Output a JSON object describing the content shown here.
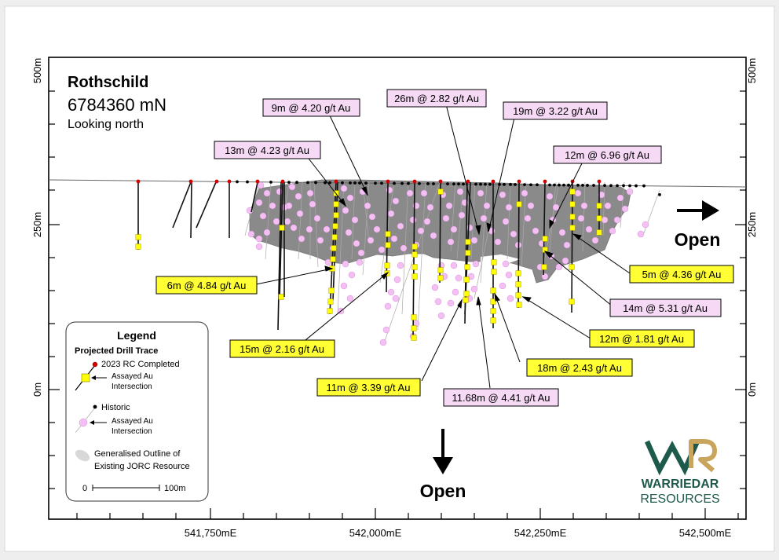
{
  "figure": {
    "title": "Rothschild",
    "section": "6784360 mN",
    "view": "Looking north"
  },
  "axes": {
    "y_ticks": [
      "500m",
      "250m",
      "0m"
    ],
    "x_ticks": [
      "541,750mE",
      "542,000mE",
      "542,250mE",
      "542,500mE"
    ]
  },
  "open_labels": {
    "right": "Open",
    "bottom": "Open"
  },
  "legend": {
    "title": "Legend",
    "subtitle": "Projected Drill Trace",
    "rc_label": "2023 RC Completed",
    "rc_int_1": "Assayed Au",
    "rc_int_2": "Intersection",
    "hist_label": "Historic",
    "hist_int_1": "Assayed Au",
    "hist_int_2": "Intersection",
    "jorc_1": "Generalised Outline of",
    "jorc_2": "Existing JORC Resource",
    "scale_0": "0",
    "scale_100": "100m"
  },
  "logo": {
    "line1": "WARRIEDAR",
    "line2": "RESOURCES"
  },
  "colors": {
    "rc_collar": "#d40000",
    "rc_intersection": "#ffff00",
    "historic_intersection": "#f4c0f4",
    "jorc_outline": "#8a8a8a",
    "pink_label_bg": "#f5d9f5",
    "yellow_label_bg": "#ffff33",
    "logo_green": "#1e5a4c",
    "logo_gold": "#c9a45c"
  },
  "intercepts": {
    "pink": [
      "9m @ 4.20 g/t Au",
      "26m @ 2.82 g/t Au",
      "19m @ 3.22 g/t Au",
      "13m @ 4.23 g/t Au",
      "12m @ 6.96 g/t Au",
      "14m @ 5.31 g/t Au",
      "11.68m @ 4.41 g/t Au"
    ],
    "yellow": [
      "6m @ 4.84 g/t Au",
      "5m @ 4.36 g/t Au",
      "15m @ 2.16 g/t Au",
      "12m @ 1.81 g/t Au",
      "18m @ 2.43 g/t Au",
      "11m @ 3.39 g/t Au"
    ]
  }
}
